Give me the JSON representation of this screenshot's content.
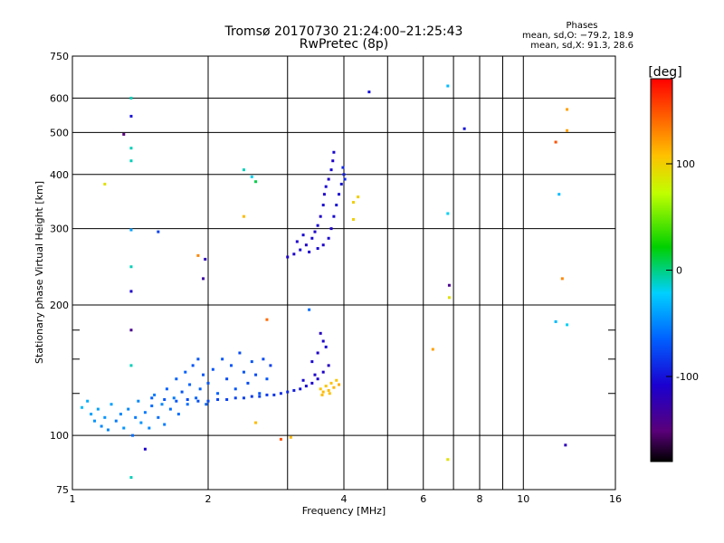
{
  "chart_data": {
    "type": "scatter",
    "title": "Tromsø 20170730 21:24:00–21:25:43",
    "subtitle": "RwPretec (8p)",
    "xlabel": "Frequency [MHz]",
    "ylabel": "Stationary phase Virtual Height [km]",
    "x_scale": "log",
    "y_scale": "log",
    "xlim": [
      1,
      16
    ],
    "ylim": [
      75,
      750
    ],
    "x_ticks": [
      1,
      2,
      4,
      6,
      8,
      10,
      16
    ],
    "x_ticks_minor": [
      3,
      5,
      7,
      9
    ],
    "y_ticks": [
      75,
      100,
      200,
      300,
      400,
      500,
      600,
      750
    ],
    "y_ticks_minor": [
      125,
      150,
      175
    ],
    "grid": true,
    "colorbar": {
      "label": "[deg]",
      "range": [
        -180,
        180
      ],
      "ticks": [
        100,
        0,
        -100
      ],
      "colormap": "rainbow"
    },
    "stats": {
      "heading": "Phases",
      "line_o": "mean, sd,O: −79.2, 18.9",
      "line_x": "mean, sd,X:  91.3, 28.6"
    },
    "series": [
      {
        "points": [
          [
            1.05,
            116,
            -30
          ],
          [
            1.08,
            120,
            -35
          ],
          [
            1.1,
            112,
            -40
          ],
          [
            1.12,
            108,
            -45
          ],
          [
            1.14,
            115,
            -40
          ],
          [
            1.16,
            105,
            -50
          ],
          [
            1.18,
            110,
            -45
          ],
          [
            1.2,
            103,
            -50
          ],
          [
            1.22,
            118,
            -40
          ],
          [
            1.25,
            108,
            -55
          ],
          [
            1.28,
            112,
            -50
          ],
          [
            1.3,
            104,
            -45
          ],
          [
            1.33,
            115,
            -50
          ],
          [
            1.36,
            100,
            -60
          ],
          [
            1.38,
            110,
            -55
          ],
          [
            1.4,
            120,
            -50
          ],
          [
            1.42,
            107,
            -45
          ],
          [
            1.45,
            113,
            -55
          ],
          [
            1.48,
            104,
            -50
          ],
          [
            1.5,
            117,
            -60
          ],
          [
            1.52,
            124,
            -55
          ],
          [
            1.55,
            110,
            -60
          ],
          [
            1.58,
            118,
            -50
          ],
          [
            1.6,
            106,
            -55
          ],
          [
            1.62,
            128,
            -65
          ],
          [
            1.65,
            115,
            -60
          ],
          [
            1.68,
            122,
            -55
          ],
          [
            1.7,
            135,
            -65
          ],
          [
            1.72,
            112,
            -60
          ],
          [
            1.75,
            126,
            -70
          ],
          [
            1.78,
            140,
            -65
          ],
          [
            1.8,
            118,
            -60
          ],
          [
            1.82,
            131,
            -65
          ],
          [
            1.85,
            145,
            -70
          ],
          [
            1.88,
            122,
            -65
          ],
          [
            1.9,
            150,
            -70
          ],
          [
            1.92,
            128,
            -65
          ],
          [
            1.95,
            138,
            -70
          ],
          [
            1.98,
            118,
            -65
          ],
          [
            2.0,
            132,
            -70
          ],
          [
            2.05,
            142,
            -70
          ],
          [
            2.1,
            125,
            -65
          ],
          [
            2.15,
            150,
            -70
          ],
          [
            2.2,
            135,
            -75
          ],
          [
            2.25,
            145,
            -70
          ],
          [
            2.3,
            128,
            -70
          ],
          [
            2.35,
            155,
            -75
          ],
          [
            2.4,
            140,
            -70
          ],
          [
            2.45,
            132,
            -75
          ],
          [
            2.5,
            148,
            -70
          ],
          [
            2.55,
            138,
            -75
          ],
          [
            2.6,
            125,
            -70
          ],
          [
            2.65,
            150,
            -75
          ],
          [
            2.7,
            135,
            -70
          ],
          [
            2.75,
            145,
            -80
          ]
        ]
      },
      {
        "points": [
          [
            1.5,
            122,
            -65
          ],
          [
            1.6,
            121,
            -70
          ],
          [
            1.7,
            120,
            -70
          ],
          [
            1.8,
            121,
            -75
          ],
          [
            1.9,
            120,
            -72
          ],
          [
            2.0,
            120,
            -75
          ],
          [
            2.1,
            121,
            -78
          ],
          [
            2.2,
            121,
            -80
          ],
          [
            2.3,
            122,
            -78
          ],
          [
            2.4,
            122,
            -80
          ],
          [
            2.5,
            123,
            -82
          ],
          [
            2.6,
            123,
            -80
          ],
          [
            2.7,
            124,
            -82
          ],
          [
            2.8,
            124,
            -85
          ],
          [
            2.9,
            125,
            -88
          ],
          [
            3.0,
            126,
            -90
          ],
          [
            3.1,
            127,
            -95
          ],
          [
            3.2,
            128,
            -100
          ],
          [
            3.3,
            130,
            -105
          ],
          [
            3.4,
            132,
            -110
          ],
          [
            3.5,
            135,
            -110
          ],
          [
            3.6,
            140,
            -110
          ],
          [
            3.7,
            145,
            -115
          ],
          [
            3.4,
            148,
            -105
          ],
          [
            3.5,
            155,
            -110
          ],
          [
            3.6,
            165,
            -110
          ],
          [
            3.55,
            172,
            -115
          ],
          [
            3.65,
            160,
            -105
          ],
          [
            3.45,
            138,
            -110
          ],
          [
            3.25,
            134,
            -105
          ]
        ]
      },
      {
        "points": [
          [
            3.55,
            128,
            105
          ],
          [
            3.6,
            126,
            110
          ],
          [
            3.65,
            130,
            105
          ],
          [
            3.7,
            127,
            110
          ],
          [
            3.75,
            132,
            108
          ],
          [
            3.8,
            129,
            112
          ],
          [
            3.85,
            134,
            106
          ],
          [
            3.9,
            131,
            115
          ],
          [
            3.58,
            124,
            110
          ],
          [
            3.72,
            125,
            108
          ]
        ]
      },
      {
        "points": [
          [
            3.0,
            258,
            -110
          ],
          [
            3.1,
            262,
            -110
          ],
          [
            3.2,
            268,
            -105
          ],
          [
            3.3,
            275,
            -110
          ],
          [
            3.4,
            285,
            -105
          ],
          [
            3.45,
            295,
            -110
          ],
          [
            3.5,
            305,
            -105
          ],
          [
            3.55,
            320,
            -110
          ],
          [
            3.6,
            340,
            -105
          ],
          [
            3.62,
            360,
            -110
          ],
          [
            3.65,
            375,
            -105
          ],
          [
            3.7,
            390,
            -110
          ],
          [
            3.75,
            410,
            -105
          ],
          [
            3.78,
            430,
            -110
          ],
          [
            3.8,
            450,
            -105
          ],
          [
            3.15,
            280,
            -110
          ],
          [
            3.25,
            290,
            -105
          ],
          [
            3.35,
            265,
            -110
          ],
          [
            3.5,
            270,
            -105
          ],
          [
            3.6,
            275,
            -110
          ],
          [
            3.7,
            285,
            -105
          ],
          [
            3.75,
            300,
            -110
          ],
          [
            3.8,
            320,
            -105
          ],
          [
            3.85,
            340,
            -100
          ],
          [
            3.9,
            360,
            -105
          ],
          [
            3.95,
            380,
            -100
          ],
          [
            4.0,
            400,
            -95
          ],
          [
            3.98,
            415,
            -90
          ],
          [
            4.02,
            390,
            -90
          ]
        ]
      },
      {
        "points": [
          [
            1.35,
            600,
            -10
          ],
          [
            1.35,
            545,
            -100
          ],
          [
            1.35,
            460,
            -10
          ],
          [
            1.35,
            430,
            -10
          ],
          [
            1.35,
            298,
            -40
          ],
          [
            1.35,
            245,
            -10
          ],
          [
            1.35,
            215,
            -110
          ],
          [
            1.35,
            175,
            -140
          ],
          [
            1.35,
            145,
            -10
          ],
          [
            1.45,
            93,
            -110
          ],
          [
            1.35,
            80,
            -10
          ],
          [
            1.55,
            295,
            -80
          ],
          [
            1.18,
            380,
            90
          ],
          [
            1.3,
            495,
            -150
          ],
          [
            1.9,
            260,
            130
          ],
          [
            1.95,
            230,
            -130
          ],
          [
            1.97,
            255,
            -120
          ],
          [
            2.4,
            410,
            -10
          ],
          [
            2.5,
            395,
            -20
          ],
          [
            2.55,
            385,
            10
          ],
          [
            2.4,
            320,
            110
          ],
          [
            2.55,
            107,
            110
          ],
          [
            2.7,
            185,
            140
          ],
          [
            2.9,
            98,
            150
          ],
          [
            3.05,
            99,
            110
          ],
          [
            3.35,
            195,
            -60
          ],
          [
            4.2,
            315,
            100
          ],
          [
            4.2,
            345,
            100
          ],
          [
            4.3,
            355,
            100
          ],
          [
            4.55,
            620,
            -100
          ],
          [
            6.3,
            158,
            120
          ],
          [
            6.8,
            640,
            -30
          ],
          [
            6.8,
            325,
            -20
          ],
          [
            6.85,
            222,
            -140
          ],
          [
            6.85,
            208,
            90
          ],
          [
            6.8,
            88,
            90
          ],
          [
            7.4,
            510,
            -100
          ],
          [
            11.8,
            475,
            150
          ],
          [
            12.2,
            230,
            130
          ],
          [
            12.5,
            565,
            120
          ],
          [
            12.5,
            505,
            120
          ],
          [
            12.0,
            360,
            -30
          ],
          [
            11.8,
            183,
            -30
          ],
          [
            12.5,
            180,
            -20
          ],
          [
            12.4,
            95,
            -120
          ]
        ]
      }
    ]
  }
}
